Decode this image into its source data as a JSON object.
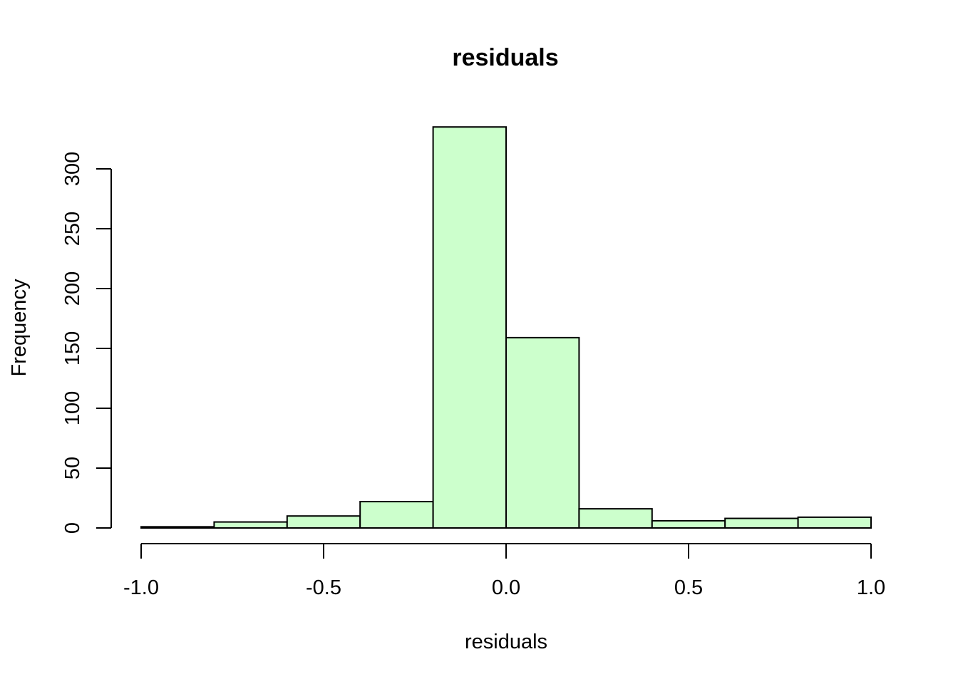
{
  "chart_data": {
    "type": "bar",
    "title": "residuals",
    "xlabel": "residuals",
    "ylabel": "Frequency",
    "bin_edges": [
      -1.0,
      -0.8,
      -0.6,
      -0.4,
      -0.2,
      0.0,
      0.2,
      0.4,
      0.6,
      0.8,
      1.0
    ],
    "values": [
      1,
      5,
      10,
      22,
      335,
      159,
      16,
      6,
      8,
      9
    ],
    "xlim": [
      -1.0,
      1.0
    ],
    "ylim": [
      0,
      300
    ],
    "x_ticks": [
      "-1.0",
      "-0.5",
      "0.0",
      "0.5",
      "1.0"
    ],
    "y_ticks": [
      "0",
      "50",
      "100",
      "150",
      "200",
      "250",
      "300"
    ],
    "bar_color": "#CCFFCC",
    "grid": false,
    "legend": "none"
  }
}
